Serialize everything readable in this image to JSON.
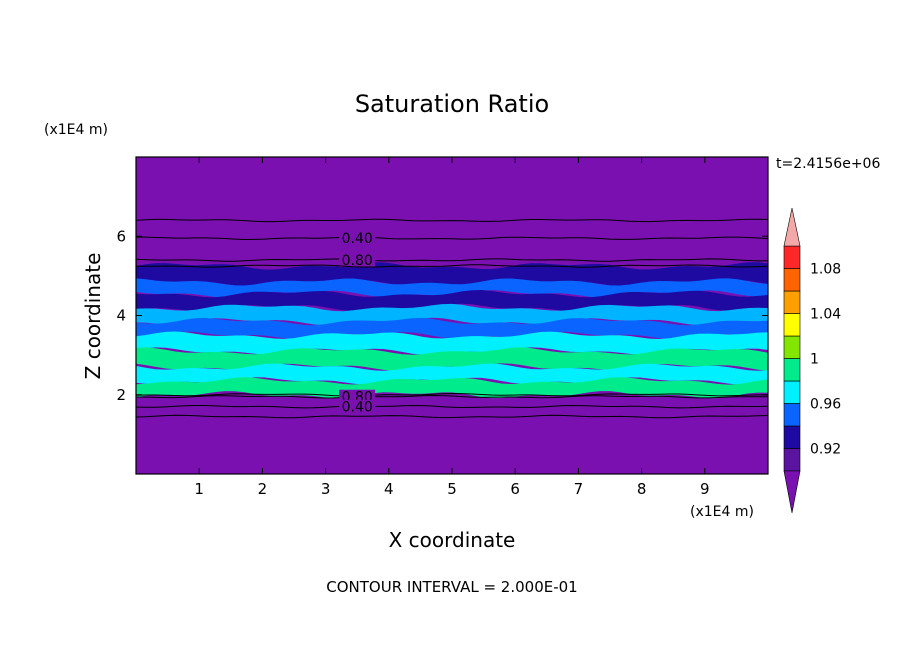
{
  "chart_data": {
    "type": "heatmap",
    "title": "Saturation Ratio",
    "xlabel": "X coordinate",
    "ylabel": "Z coordinate",
    "x_unit": "(x1E4 m)",
    "y_unit": "(x1E4 m)",
    "time_label": "t=2.4156e+06",
    "footer": "CONTOUR INTERVAL = 2.000E-01",
    "xlim": [
      0,
      10
    ],
    "ylim": [
      0,
      8
    ],
    "x_ticks": [
      "1",
      "2",
      "3",
      "4",
      "5",
      "6",
      "7",
      "8",
      "9"
    ],
    "y_ticks": [
      "2",
      "4",
      "6"
    ],
    "colorbar": {
      "tick_labels": [
        "0.92",
        "0.96",
        "1",
        "1.04",
        "1.08"
      ],
      "bins": [
        {
          "from": 0.9,
          "to": 0.92,
          "color": "#5a14a0"
        },
        {
          "from": 0.92,
          "to": 0.94,
          "color": "#1e0aa0"
        },
        {
          "from": 0.94,
          "to": 0.96,
          "color": "#0a64ff"
        },
        {
          "from": 0.96,
          "to": 0.98,
          "color": "#00f0ff"
        },
        {
          "from": 0.98,
          "to": 1.0,
          "color": "#00eb8c"
        },
        {
          "from": 1.0,
          "to": 1.02,
          "color": "#82e600"
        },
        {
          "from": 1.02,
          "to": 1.04,
          "color": "#ffff00"
        },
        {
          "from": 1.04,
          "to": 1.06,
          "color": "#ffa000"
        },
        {
          "from": 1.06,
          "to": 1.08,
          "color": "#ff6400"
        },
        {
          "from": 1.08,
          "to": 1.1,
          "color": "#ff2828"
        }
      ],
      "under_color": "#7a10b0",
      "over_color": "#f4a8a8"
    },
    "background_color": "#7a10b0",
    "bands": [
      {
        "z_from": 4.8,
        "z_to": 5.25,
        "color": "#1e0aa0"
      },
      {
        "z_from": 4.55,
        "z_to": 4.85,
        "color": "#0a64ff"
      },
      {
        "z_from": 4.2,
        "z_to": 4.55,
        "color": "#1e0aa0"
      },
      {
        "z_from": 3.85,
        "z_to": 4.2,
        "color": "#00b4ff"
      },
      {
        "z_from": 3.5,
        "z_to": 3.85,
        "color": "#0a64ff"
      },
      {
        "z_from": 3.1,
        "z_to": 3.5,
        "color": "#00f0ff"
      },
      {
        "z_from": 2.7,
        "z_to": 3.1,
        "color": "#00eb8c"
      },
      {
        "z_from": 2.35,
        "z_to": 2.7,
        "color": "#00f0ff"
      },
      {
        "z_from": 2.0,
        "z_to": 2.35,
        "color": "#00eb8c"
      }
    ],
    "contour_lines": [
      {
        "z": 6.4
      },
      {
        "z": 5.95,
        "label": "0.40"
      },
      {
        "z": 5.4,
        "label": "0.80"
      },
      {
        "z": 5.25
      },
      {
        "z": 2.0
      },
      {
        "z": 1.95,
        "label": "0.80"
      },
      {
        "z": 1.7,
        "label": "0.40"
      },
      {
        "z": 1.45
      }
    ]
  }
}
